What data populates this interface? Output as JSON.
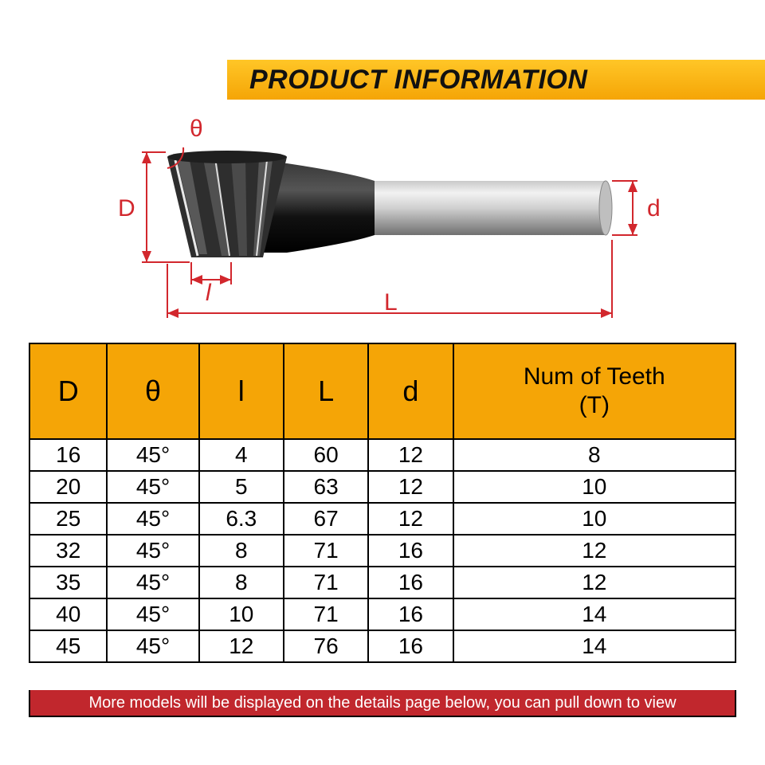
{
  "title": "PRODUCT INFORMATION",
  "diagram": {
    "labels": {
      "D": "D",
      "theta": "θ",
      "l": "l",
      "L": "L",
      "d": "d"
    },
    "colors": {
      "annotation": "#d2272d",
      "shank_light": "#d8d8d8",
      "shank_dark": "#8a8a8a",
      "collar": "#1a1a1a",
      "cutter": "#2b2b2b"
    }
  },
  "table": {
    "header_bg": "#f5a506",
    "columns": [
      "D",
      "θ",
      "l",
      "L",
      "d",
      "Num of Teeth\n(T)"
    ],
    "col_widths_pct": [
      11,
      13,
      12,
      12,
      12,
      40
    ],
    "rows": [
      [
        "16",
        "45°",
        "4",
        "60",
        "12",
        "8"
      ],
      [
        "20",
        "45°",
        "5",
        "63",
        "12",
        "10"
      ],
      [
        "25",
        "45°",
        "6.3",
        "67",
        "12",
        "10"
      ],
      [
        "32",
        "45°",
        "8",
        "71",
        "16",
        "12"
      ],
      [
        "35",
        "45°",
        "8",
        "71",
        "16",
        "12"
      ],
      [
        "40",
        "45°",
        "10",
        "71",
        "16",
        "14"
      ],
      [
        "45",
        "45°",
        "12",
        "76",
        "16",
        "14"
      ]
    ]
  },
  "footer": "More models will be displayed on the details page below, you can pull down to view",
  "footer_bg": "#c1272d"
}
